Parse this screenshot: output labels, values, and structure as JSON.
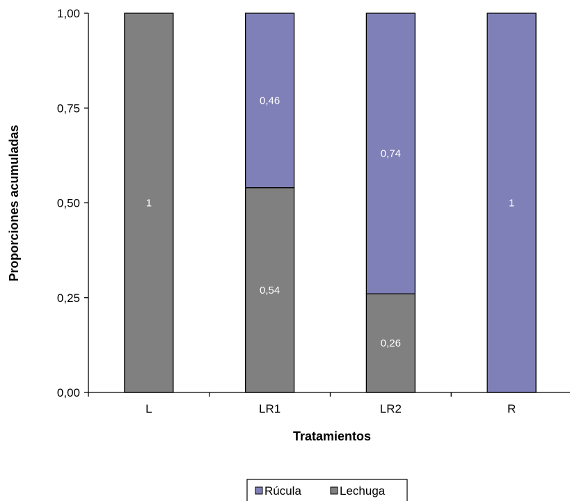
{
  "chart_data": {
    "type": "bar",
    "stacked": true,
    "categories": [
      "L",
      "LR1",
      "LR2",
      "R"
    ],
    "series": [
      {
        "name": "Lechuga",
        "values": [
          1,
          0.54,
          0.26,
          0
        ],
        "labels": [
          "1",
          "0,54",
          "0,26",
          ""
        ],
        "color": "#808080"
      },
      {
        "name": "Rúcula",
        "values": [
          0,
          0.46,
          0.74,
          1
        ],
        "labels": [
          "",
          "0,46",
          "0,74",
          "1"
        ],
        "color": "#8080b8"
      }
    ],
    "xlabel": "Tratamientos",
    "ylabel": "Proporciones acumuladas",
    "ylim": [
      0,
      1
    ],
    "yticks": [
      0,
      0.25,
      0.5,
      0.75,
      1
    ],
    "ytick_labels": [
      "0,00",
      "0,25",
      "0,50",
      "0,75",
      "1,00"
    ],
    "legend": {
      "position": "bottom",
      "entries": [
        "Rúcula",
        "Lechuga"
      ]
    },
    "grid": false
  }
}
